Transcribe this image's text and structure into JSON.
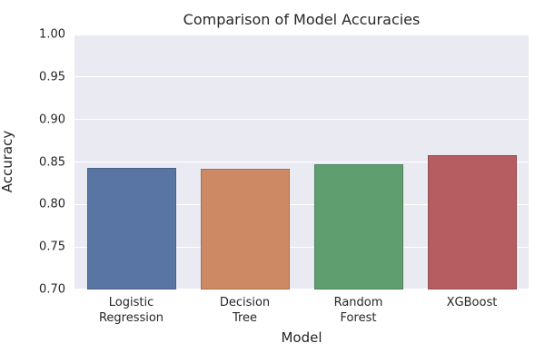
{
  "figure": {
    "background": "#ffffff",
    "plot_background": "#eaeaf2",
    "grid_color": "#ffffff",
    "text_color": "#262626"
  },
  "chart_data": {
    "type": "bar",
    "title": "Comparison of Model Accuracies",
    "xlabel": "Model",
    "ylabel": "Accuracy",
    "categories": [
      "Logistic\nRegression",
      "Decision\nTree",
      "Random\nForest",
      "XGBoost"
    ],
    "values": [
      0.843,
      0.842,
      0.847,
      0.858
    ],
    "bar_colors": [
      "#5975a4",
      "#cc8963",
      "#5f9e6e",
      "#b55d60"
    ],
    "bar_edge_colors": [
      "#496087",
      "#a77151",
      "#4e825b",
      "#954c4f"
    ],
    "ylim": [
      0.7,
      1.0
    ],
    "yticks": [
      0.7,
      0.75,
      0.8,
      0.85,
      0.9,
      0.95,
      1.0
    ],
    "ytick_labels": [
      "0.70",
      "0.75",
      "0.80",
      "0.85",
      "0.90",
      "0.95",
      "1.00"
    ],
    "grid": true,
    "legend_position": "none"
  }
}
